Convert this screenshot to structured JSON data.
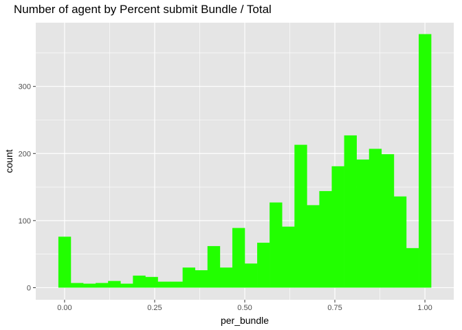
{
  "chart_data": {
    "type": "bar",
    "title": "Number of agent by Percent submit Bundle / Total",
    "xlabel": "per_bundle",
    "ylabel": "count",
    "xlim": [
      -0.08,
      1.08
    ],
    "ylim": [
      -18,
      395
    ],
    "grid": true,
    "legend": "none",
    "bar_color": "#22ff00",
    "panel_background": "#e5e5e5",
    "grid_color": "#ffffff",
    "x_ticks": [
      0.0,
      0.25,
      0.5,
      0.75,
      1.0
    ],
    "x_tick_labels": [
      "0.00",
      "0.25",
      "0.50",
      "0.75",
      "1.00"
    ],
    "y_ticks": [
      0,
      100,
      200,
      300
    ],
    "y_tick_labels": [
      "0",
      "100",
      "200",
      "300"
    ],
    "bin_width": 0.03448,
    "bin_centers": [
      0.0,
      0.0345,
      0.069,
      0.1034,
      0.1379,
      0.1724,
      0.2069,
      0.2414,
      0.2759,
      0.3103,
      0.3448,
      0.3793,
      0.4138,
      0.4483,
      0.4828,
      0.5172,
      0.5517,
      0.5862,
      0.6207,
      0.6552,
      0.6897,
      0.7241,
      0.7586,
      0.7931,
      0.8276,
      0.8621,
      0.8966,
      0.931,
      0.9655,
      1.0
    ],
    "values": [
      76,
      7,
      6,
      7,
      10,
      6,
      18,
      16,
      9,
      9,
      30,
      26,
      62,
      30,
      89,
      36,
      67,
      127,
      91,
      213,
      123,
      144,
      181,
      227,
      191,
      207,
      199,
      136,
      59,
      378
    ]
  }
}
